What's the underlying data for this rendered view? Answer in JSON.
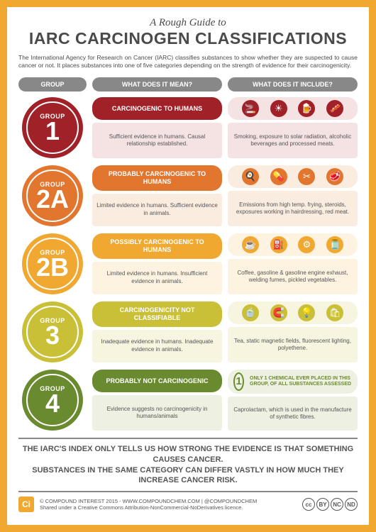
{
  "pretitle": "A Rough Guide to",
  "title": "IARC CARCINOGEN CLASSIFICATIONS",
  "intro": "The International Agency for Research on Cancer (IARC) classifies substances to show whether they are suspected to cause cancer or not. It places substances into one of five categories depending on the strength of evidence for their carcinogenicity.",
  "cols": {
    "a": "GROUP",
    "b": "WHAT DOES IT MEAN?",
    "c": "WHAT DOES IT INCLUDE?"
  },
  "groups": [
    {
      "num": "1",
      "color": "#a02128",
      "pale": "#f5e3e3",
      "label": "CARCINOGENIC TO HUMANS",
      "meaning": "Sufficient evidence in humans. Causal relationship established.",
      "includes": "Smoking, exposure to solar radiation, alcoholic beverages and processed meats.",
      "icons": [
        "🚬",
        "☀",
        "🍺",
        "🥓"
      ]
    },
    {
      "num": "2A",
      "color": "#e2762e",
      "pale": "#fbece0",
      "label": "PROBABLY CARCINOGENIC TO HUMANS",
      "meaning": "Limited evidence in humans. Sufficient evidence in animals.",
      "includes": "Emissions from high temp. frying, steroids, exposures working in hairdressing, red meat.",
      "icons": [
        "🍳",
        "💊",
        "✂",
        "🥩"
      ]
    },
    {
      "num": "2B",
      "color": "#f0a830",
      "pale": "#fdf3e0",
      "label": "POSSIBLY CARCINOGENIC TO HUMANS",
      "meaning": "Limited evidence in humans. Insufficient evidence in animals.",
      "includes": "Coffee, gasoline & gasoline engine exhaust, welding fumes, pickled vegetables.",
      "icons": [
        "☕",
        "⛽",
        "⚙",
        "🫙"
      ]
    },
    {
      "num": "3",
      "color": "#c9c038",
      "pale": "#f7f5e0",
      "label": "CARCINOGENICITY NOT CLASSIFIABLE",
      "meaning": "Inadequate evidence in humans. Inadequate evidence in animals.",
      "includes": "Tea, static magnetic fields, fluorescent lighting, polyethene.",
      "icons": [
        "🍵",
        "🧲",
        "💡",
        "🛍"
      ]
    },
    {
      "num": "4",
      "color": "#6a8a2f",
      "pale": "#eef1e2",
      "label": "PROBABLY NOT CARCINOGENIC",
      "meaning": "Evidence suggests no carcinogenicity in humans/animals",
      "includes": "Caprolactam, which is used in the manufacture of synthetic fibres.",
      "special": {
        "num": "1",
        "txt": "ONLY 1 CHEMICAL EVER PLACED IN THIS GROUP, OF ALL SUBSTANCES ASSESSED"
      }
    }
  ],
  "footer1a": "THE IARC'S INDEX ONLY TELLS US HOW STRONG THE EVIDENCE IS THAT SOMETHING CAUSES CANCER.",
  "footer1b": "SUBSTANCES IN THE SAME CATEGORY CAN DIFFER VASTLY IN HOW MUCH THEY INCREASE CANCER RISK.",
  "ci": "Ci",
  "credit1": "© COMPOUND INTEREST 2015 - WWW.COMPOUNDCHEM.COM | @COMPOUNDCHEM",
  "credit2": "Shared under a Creative Commons Attribution-NonCommercial-NoDerivatives licence.",
  "cc": [
    "cc",
    "BY",
    "NC",
    "ND"
  ]
}
